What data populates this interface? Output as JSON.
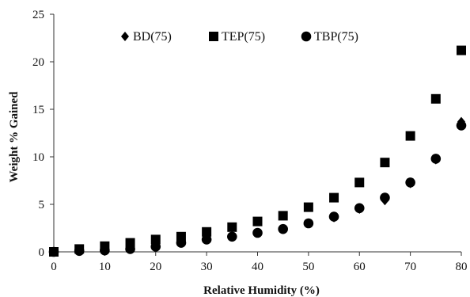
{
  "chart_data": {
    "type": "scatter",
    "title": "",
    "xlabel": "Relative Humidity  (%)",
    "ylabel": "Weight % Gained",
    "xlim": [
      0,
      80
    ],
    "ylim": [
      0,
      25
    ],
    "xticks": [
      0,
      10,
      20,
      30,
      40,
      50,
      60,
      70,
      80
    ],
    "yticks": [
      0,
      5,
      10,
      15,
      20,
      25
    ],
    "grid": false,
    "legend_position": "top",
    "series": [
      {
        "name": "BD(75)",
        "marker": "diamond",
        "color": "#000000",
        "x": [
          0,
          5,
          10,
          15,
          20,
          25,
          30,
          35,
          40,
          45,
          50,
          55,
          60,
          65,
          70,
          75,
          80
        ],
        "y": [
          0,
          0.1,
          0.2,
          0.35,
          0.6,
          1.0,
          1.3,
          1.6,
          2.0,
          2.4,
          3.0,
          3.6,
          4.5,
          5.4,
          7.2,
          9.7,
          13.7
        ]
      },
      {
        "name": "TEP(75)",
        "marker": "square",
        "color": "#000000",
        "x": [
          0,
          5,
          10,
          15,
          20,
          25,
          30,
          35,
          40,
          45,
          50,
          55,
          60,
          65,
          70,
          75,
          80
        ],
        "y": [
          0,
          0.3,
          0.6,
          0.95,
          1.3,
          1.6,
          2.1,
          2.6,
          3.2,
          3.8,
          4.7,
          5.7,
          7.3,
          9.4,
          12.2,
          16.1,
          21.2
        ]
      },
      {
        "name": "TBP(75)",
        "marker": "circle",
        "color": "#000000",
        "x": [
          0,
          5,
          10,
          15,
          20,
          25,
          30,
          35,
          40,
          45,
          50,
          55,
          60,
          65,
          70,
          75,
          80
        ],
        "y": [
          0,
          0.1,
          0.15,
          0.3,
          0.55,
          0.95,
          1.3,
          1.6,
          2.0,
          2.4,
          3.0,
          3.7,
          4.6,
          5.7,
          7.3,
          9.8,
          13.3
        ]
      }
    ]
  }
}
